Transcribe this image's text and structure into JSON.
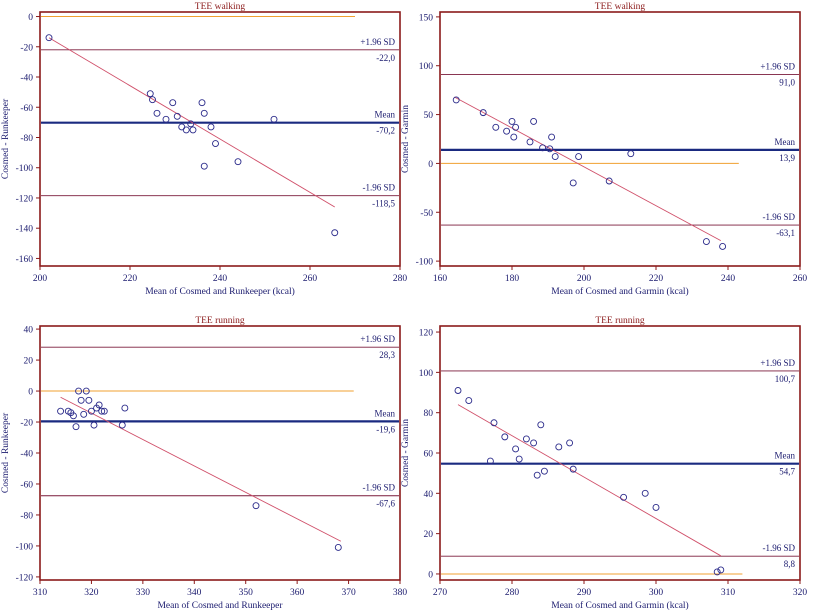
{
  "chart_data": [
    {
      "type": "scatter",
      "title": "TEE walking",
      "xlabel": "Mean of  Cosmed and Runkeeper (kcal)",
      "ylabel": "Cosmed - Runkeeper",
      "xlim": [
        200,
        280
      ],
      "ylim": [
        -165,
        3
      ],
      "xticks": [
        200,
        220,
        240,
        260,
        280
      ],
      "yticks": [
        0,
        -20,
        -40,
        -60,
        -80,
        -100,
        -120,
        -140,
        -160
      ],
      "zero_line_x": [
        200,
        270
      ],
      "regression": {
        "x": [
          202,
          265.5
        ],
        "y": [
          -14,
          -126
        ]
      },
      "lines": {
        "upper": {
          "label": "+1.96 SD",
          "value": -22.0,
          "value_label": "-22,0"
        },
        "mean": {
          "label": "Mean",
          "value": -70.2,
          "value_label": "-70,2"
        },
        "lower": {
          "label": "-1.96 SD",
          "value": -118.5,
          "value_label": "-118,5"
        }
      },
      "points": [
        [
          202,
          -14
        ],
        [
          224.5,
          -51
        ],
        [
          225,
          -55
        ],
        [
          226,
          -64
        ],
        [
          228,
          -68
        ],
        [
          229.5,
          -57
        ],
        [
          230.5,
          -66
        ],
        [
          231.5,
          -73
        ],
        [
          232.5,
          -75
        ],
        [
          233.5,
          -71
        ],
        [
          234,
          -75
        ],
        [
          236,
          -57
        ],
        [
          236.5,
          -64
        ],
        [
          236.5,
          -99
        ],
        [
          238,
          -73
        ],
        [
          239,
          -84
        ],
        [
          244,
          -96
        ],
        [
          252,
          -68
        ],
        [
          265.5,
          -143
        ]
      ]
    },
    {
      "type": "scatter",
      "title": "TEE walking",
      "xlabel": "Mean  of Cosmed and Garmin (kcal)",
      "ylabel": "Cosmed - Garmin",
      "xlim": [
        160,
        260
      ],
      "ylim": [
        -105,
        155
      ],
      "xticks": [
        160,
        180,
        200,
        220,
        240,
        260
      ],
      "yticks": [
        150,
        100,
        50,
        0,
        -50,
        -100
      ],
      "zero_line_x": [
        160,
        243
      ],
      "regression": {
        "x": [
          164,
          238
        ],
        "y": [
          68,
          -79
        ]
      },
      "lines": {
        "upper": {
          "label": "+1.96 SD",
          "value": 91.0,
          "value_label": "91,0"
        },
        "mean": {
          "label": "Mean",
          "value": 13.9,
          "value_label": "13,9"
        },
        "lower": {
          "label": "-1.96 SD",
          "value": -63.1,
          "value_label": "-63,1"
        }
      },
      "points": [
        [
          164.5,
          65
        ],
        [
          172,
          52
        ],
        [
          175.5,
          37
        ],
        [
          178.5,
          33
        ],
        [
          180,
          43
        ],
        [
          180.5,
          27
        ],
        [
          181,
          37
        ],
        [
          185,
          22
        ],
        [
          186,
          43
        ],
        [
          188.5,
          16
        ],
        [
          190.5,
          15
        ],
        [
          191,
          27
        ],
        [
          192,
          7
        ],
        [
          197,
          -20
        ],
        [
          198.5,
          7
        ],
        [
          207,
          -18
        ],
        [
          213,
          10
        ],
        [
          234,
          -80
        ],
        [
          238.5,
          -85
        ]
      ]
    },
    {
      "type": "scatter",
      "title": "TEE running",
      "xlabel": "Mean of Cosmed and Runkeeper",
      "ylabel": "Cosmed - Runkeeper",
      "xlim": [
        310,
        380
      ],
      "ylim": [
        -122,
        42
      ],
      "xticks": [
        310,
        320,
        330,
        340,
        350,
        360,
        370,
        380
      ],
      "yticks": [
        40,
        20,
        0,
        -20,
        -40,
        -60,
        -80,
        -100,
        -120
      ],
      "zero_line_x": [
        310,
        371
      ],
      "regression": {
        "x": [
          314,
          368.5
        ],
        "y": [
          -4,
          -97
        ]
      },
      "lines": {
        "upper": {
          "label": "+1.96 SD",
          "value": 28.3,
          "value_label": "28,3"
        },
        "mean": {
          "label": "Mean",
          "value": -19.6,
          "value_label": "-19,6"
        },
        "lower": {
          "label": "-1.96 SD",
          "value": -67.6,
          "value_label": "-67,6"
        }
      },
      "points": [
        [
          314,
          -13
        ],
        [
          315.5,
          -13
        ],
        [
          316,
          -14
        ],
        [
          316.5,
          -16
        ],
        [
          317,
          -23
        ],
        [
          317.5,
          0
        ],
        [
          318,
          -6
        ],
        [
          318.5,
          -15
        ],
        [
          319,
          0
        ],
        [
          319.5,
          -6
        ],
        [
          320,
          -13
        ],
        [
          320.5,
          -22
        ],
        [
          321,
          -11
        ],
        [
          321.5,
          -9
        ],
        [
          322,
          -13
        ],
        [
          322.5,
          -13
        ],
        [
          326,
          -22
        ],
        [
          326.5,
          -11
        ],
        [
          352,
          -74
        ],
        [
          368,
          -101
        ]
      ]
    },
    {
      "type": "scatter",
      "title": "TEE running",
      "xlabel": "Mean of Cosmed and Garmin (kcal)",
      "ylabel": "Cosmed - Garmin",
      "xlim": [
        270,
        320
      ],
      "ylim": [
        -3,
        123
      ],
      "xticks": [
        270,
        280,
        290,
        300,
        310,
        320
      ],
      "yticks": [
        120,
        100,
        80,
        60,
        40,
        20,
        0
      ],
      "zero_line_x": [
        270,
        312
      ],
      "regression": {
        "x": [
          272.5,
          309
        ],
        "y": [
          84,
          9
        ]
      },
      "lines": {
        "upper": {
          "label": "+1.96 SD",
          "value": 100.7,
          "value_label": "100,7"
        },
        "mean": {
          "label": "Mean",
          "value": 54.7,
          "value_label": "54,7"
        },
        "lower": {
          "label": "-1.96 SD",
          "value": 8.8,
          "value_label": "8,8"
        }
      },
      "points": [
        [
          272.5,
          91
        ],
        [
          274,
          86
        ],
        [
          277,
          56
        ],
        [
          277.5,
          75
        ],
        [
          279,
          68
        ],
        [
          280.5,
          62
        ],
        [
          281,
          57
        ],
        [
          282,
          67
        ],
        [
          283,
          65
        ],
        [
          283.5,
          49
        ],
        [
          284,
          74
        ],
        [
          284.5,
          51
        ],
        [
          286.5,
          63
        ],
        [
          288,
          65
        ],
        [
          288.5,
          52
        ],
        [
          295.5,
          38
        ],
        [
          298.5,
          40
        ],
        [
          300,
          33
        ],
        [
          308.5,
          1
        ],
        [
          309,
          2
        ]
      ]
    }
  ]
}
